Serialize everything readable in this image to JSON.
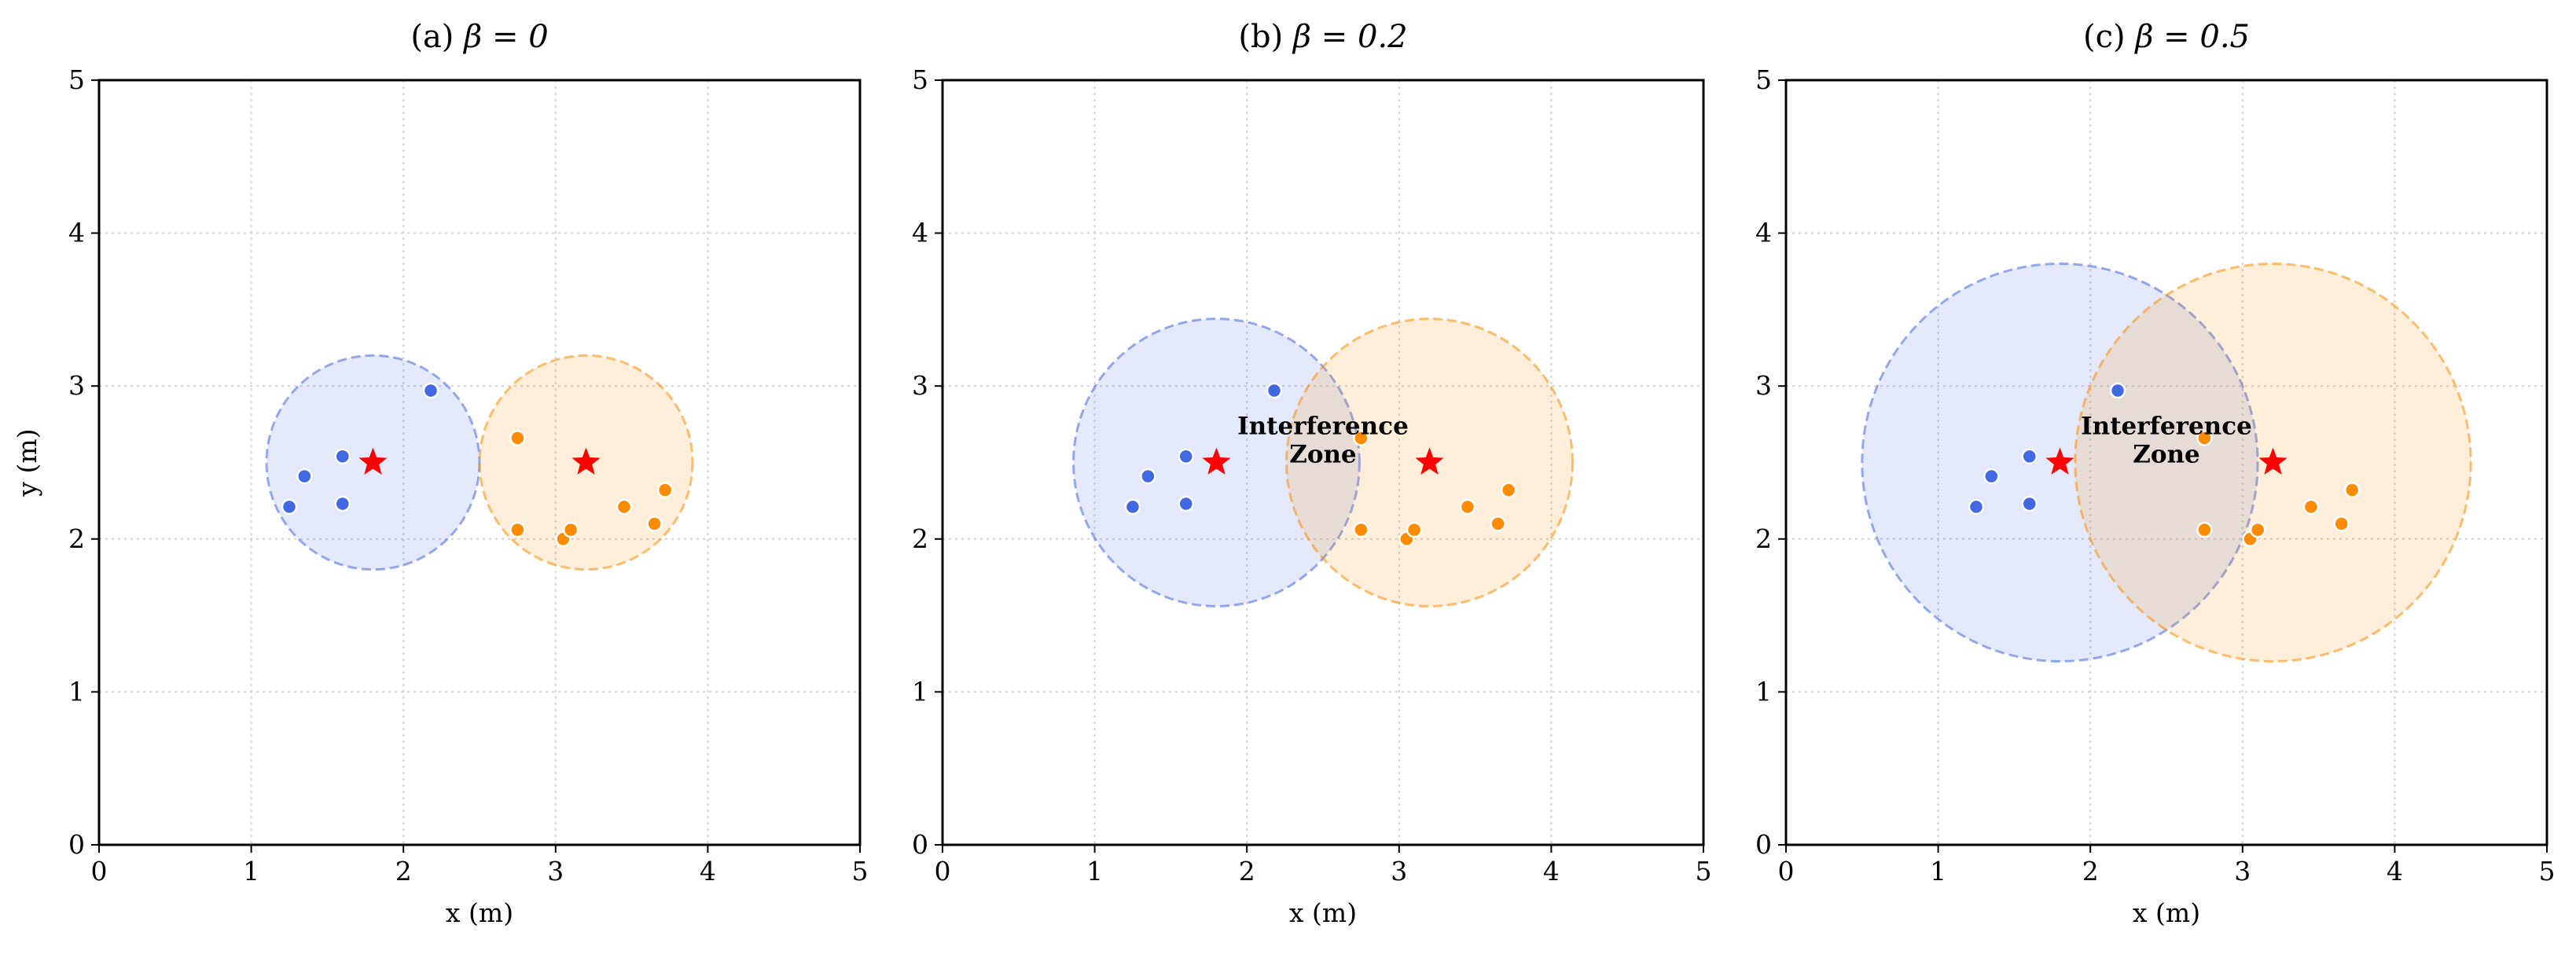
{
  "chart_data": [
    {
      "type": "scatter",
      "title_prefix": "(a)",
      "title_math": "β = 0",
      "xlabel": "x (m)",
      "ylabel": "y (m)",
      "xlim": [
        0,
        5
      ],
      "ylim": [
        0,
        5
      ],
      "xticks": [
        "0",
        "1",
        "2",
        "3",
        "4",
        "5"
      ],
      "yticks": [
        "0",
        "1",
        "2",
        "3",
        "4",
        "5"
      ],
      "grid": true,
      "annotation": "",
      "coverage": [
        {
          "center": [
            1.8,
            2.5
          ],
          "radius": 0.7,
          "color": "#4169E1"
        },
        {
          "center": [
            3.2,
            2.5
          ],
          "radius": 0.7,
          "color": "#FF8C00"
        }
      ],
      "anchors": [
        [
          1.8,
          2.5
        ],
        [
          3.2,
          2.5
        ]
      ],
      "series": [
        {
          "color": "#4169E1",
          "points": [
            [
              1.25,
              2.21
            ],
            [
              1.35,
              2.41
            ],
            [
              1.6,
              2.54
            ],
            [
              1.6,
              2.23
            ],
            [
              2.18,
              2.97
            ]
          ]
        },
        {
          "color": "#FF8C00",
          "points": [
            [
              2.75,
              2.66
            ],
            [
              2.75,
              2.06
            ],
            [
              3.05,
              2.0
            ],
            [
              3.1,
              2.06
            ],
            [
              3.45,
              2.21
            ],
            [
              3.65,
              2.1
            ],
            [
              3.72,
              2.32
            ]
          ]
        }
      ]
    },
    {
      "type": "scatter",
      "title_prefix": "(b)",
      "title_math": "β = 0.2",
      "xlabel": "x (m)",
      "ylabel": "",
      "xlim": [
        0,
        5
      ],
      "ylim": [
        0,
        5
      ],
      "xticks": [
        "0",
        "1",
        "2",
        "3",
        "4",
        "5"
      ],
      "yticks": [
        "0",
        "1",
        "2",
        "3",
        "4",
        "5"
      ],
      "grid": true,
      "annotation": [
        "Interference",
        "Zone"
      ],
      "coverage": [
        {
          "center": [
            1.8,
            2.5
          ],
          "radius": 0.94,
          "color": "#4169E1"
        },
        {
          "center": [
            3.2,
            2.5
          ],
          "radius": 0.94,
          "color": "#FF8C00"
        }
      ],
      "anchors": [
        [
          1.8,
          2.5
        ],
        [
          3.2,
          2.5
        ]
      ],
      "series": [
        {
          "color": "#4169E1",
          "points": [
            [
              1.25,
              2.21
            ],
            [
              1.35,
              2.41
            ],
            [
              1.6,
              2.54
            ],
            [
              1.6,
              2.23
            ],
            [
              2.18,
              2.97
            ]
          ]
        },
        {
          "color": "#FF8C00",
          "points": [
            [
              2.75,
              2.66
            ],
            [
              2.75,
              2.06
            ],
            [
              3.05,
              2.0
            ],
            [
              3.1,
              2.06
            ],
            [
              3.45,
              2.21
            ],
            [
              3.65,
              2.1
            ],
            [
              3.72,
              2.32
            ]
          ]
        }
      ]
    },
    {
      "type": "scatter",
      "title_prefix": "(c)",
      "title_math": "β = 0.5",
      "xlabel": "x (m)",
      "ylabel": "",
      "xlim": [
        0,
        5
      ],
      "ylim": [
        0,
        5
      ],
      "xticks": [
        "0",
        "1",
        "2",
        "3",
        "4",
        "5"
      ],
      "yticks": [
        "0",
        "1",
        "2",
        "3",
        "4",
        "5"
      ],
      "grid": true,
      "annotation": [
        "Interference",
        "Zone"
      ],
      "coverage": [
        {
          "center": [
            1.8,
            2.5
          ],
          "radius": 1.3,
          "color": "#4169E1"
        },
        {
          "center": [
            3.2,
            2.5
          ],
          "radius": 1.3,
          "color": "#FF8C00"
        }
      ],
      "anchors": [
        [
          1.8,
          2.5
        ],
        [
          3.2,
          2.5
        ]
      ],
      "series": [
        {
          "color": "#4169E1",
          "points": [
            [
              1.25,
              2.21
            ],
            [
              1.35,
              2.41
            ],
            [
              1.6,
              2.54
            ],
            [
              1.6,
              2.23
            ],
            [
              2.18,
              2.97
            ]
          ]
        },
        {
          "color": "#FF8C00",
          "points": [
            [
              2.75,
              2.66
            ],
            [
              2.75,
              2.06
            ],
            [
              3.05,
              2.0
            ],
            [
              3.1,
              2.06
            ],
            [
              3.45,
              2.21
            ],
            [
              3.65,
              2.1
            ],
            [
              3.72,
              2.32
            ]
          ]
        }
      ]
    }
  ],
  "colors": {
    "anchor": "#FF0000",
    "grid": "#D3D3D3",
    "axis": "#000000"
  }
}
